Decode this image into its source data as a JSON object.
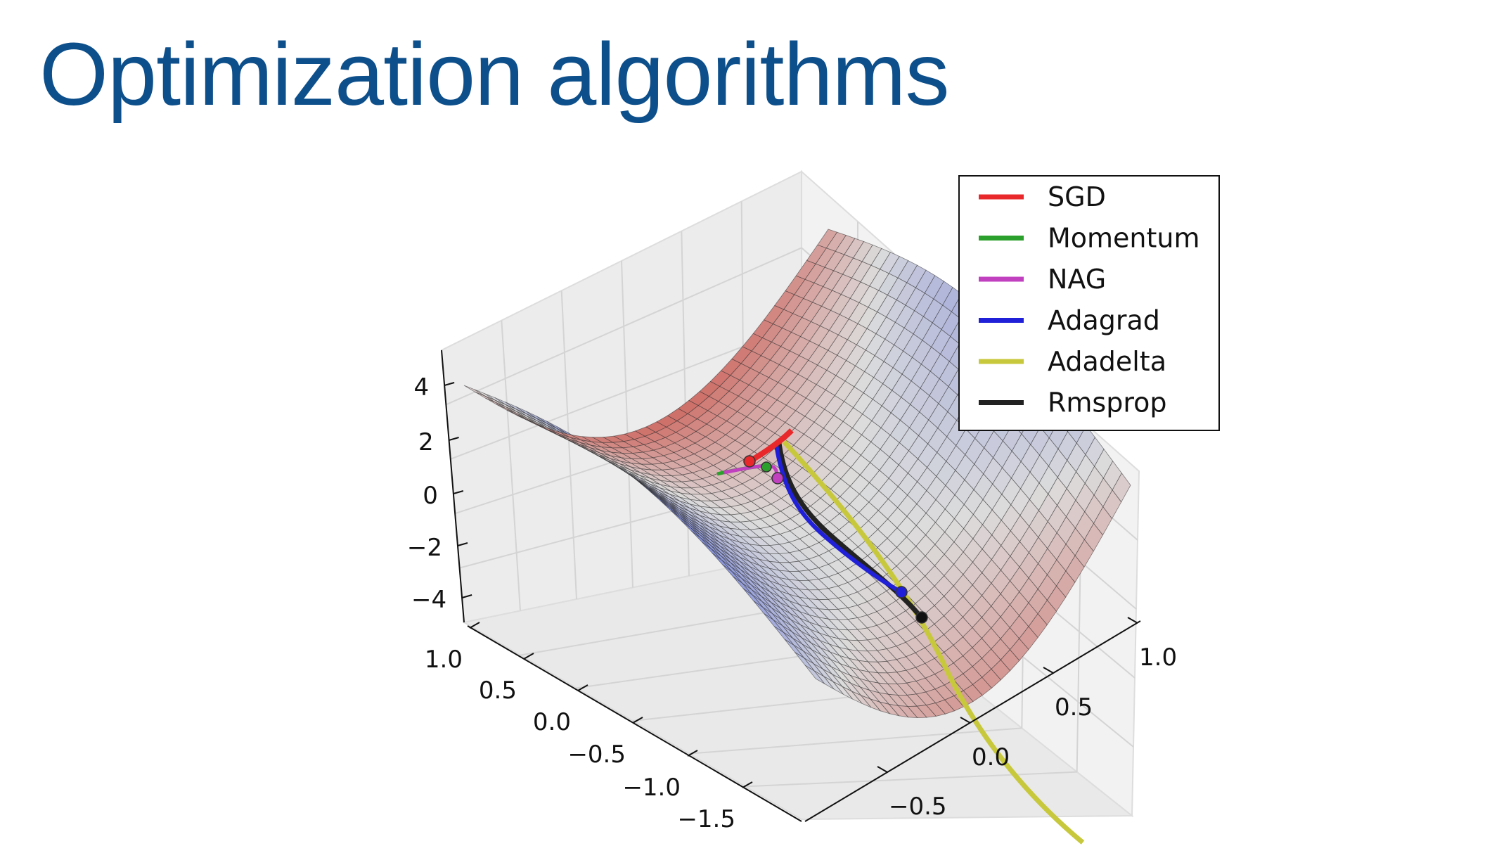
{
  "slide": {
    "title": "Optimization algorithms"
  },
  "chart_data": {
    "type": "surface3d",
    "surface": "saddle z = x^2 - y^2",
    "z_ticks": [
      "4",
      "2",
      "0",
      "−2",
      "−4"
    ],
    "x_ticks": [
      "1.0",
      "0.5",
      "0.0",
      "−0.5",
      "−1.0",
      "−1.5"
    ],
    "y_ticks": [
      "1.0",
      "0.5",
      "0.0",
      "−0.5"
    ],
    "legend": {
      "placement": "top-right",
      "entries": [
        {
          "label": "SGD",
          "color": "#e8282b"
        },
        {
          "label": "Momentum",
          "color": "#2ca02c"
        },
        {
          "label": "NAG",
          "color": "#c040c0"
        },
        {
          "label": "Adagrad",
          "color": "#2020d8"
        },
        {
          "label": "Adadelta",
          "color": "#c8c83c"
        },
        {
          "label": "Rmsprop",
          "color": "#222222"
        }
      ]
    },
    "colormap": {
      "low": "#3a4fd8",
      "mid": "#dcdcdc",
      "high": "#c8372d"
    }
  }
}
